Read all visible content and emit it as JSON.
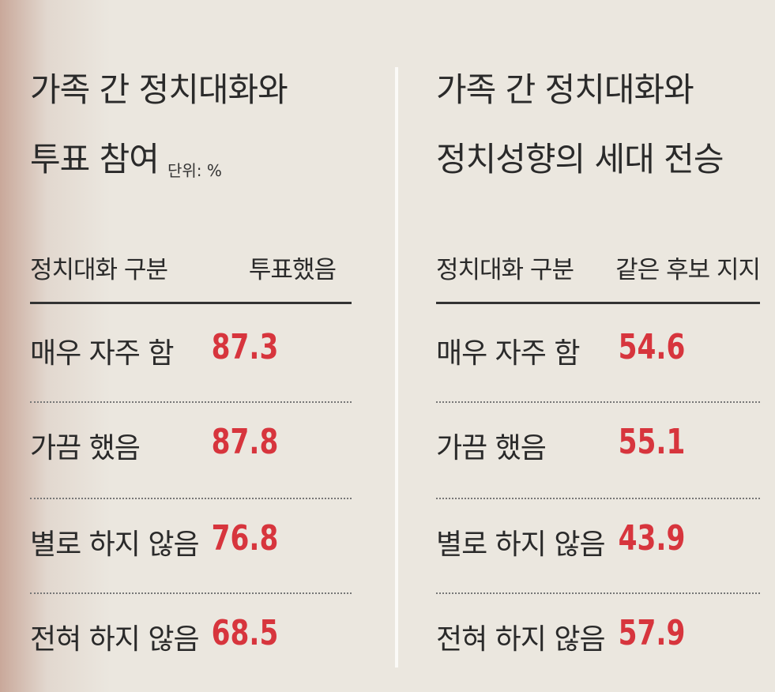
{
  "left": {
    "title": [
      "가족 간 정치대화와",
      "투표 참여"
    ],
    "unit": "단위: %",
    "header": [
      "정치대화 구분",
      "투표했음"
    ],
    "rows": [
      [
        "매우 자주 함",
        87.3
      ],
      [
        "가끔 했음",
        87.8
      ],
      [
        "별로 하지 않음",
        76.8
      ],
      [
        "전혀 하지 않음",
        68.5
      ]
    ]
  },
  "right": {
    "title": [
      "가족 간 정치대화와",
      "정치성향의 세대 전승"
    ],
    "header": [
      "정치대화 구분",
      "같은 후보 지지"
    ],
    "rows": [
      [
        "매우 자주 함",
        54.6
      ],
      [
        "가끔 했음",
        55.1
      ],
      [
        "별로 하지 않음",
        43.9
      ],
      [
        "전혀 하지 않음",
        57.9
      ]
    ]
  }
}
